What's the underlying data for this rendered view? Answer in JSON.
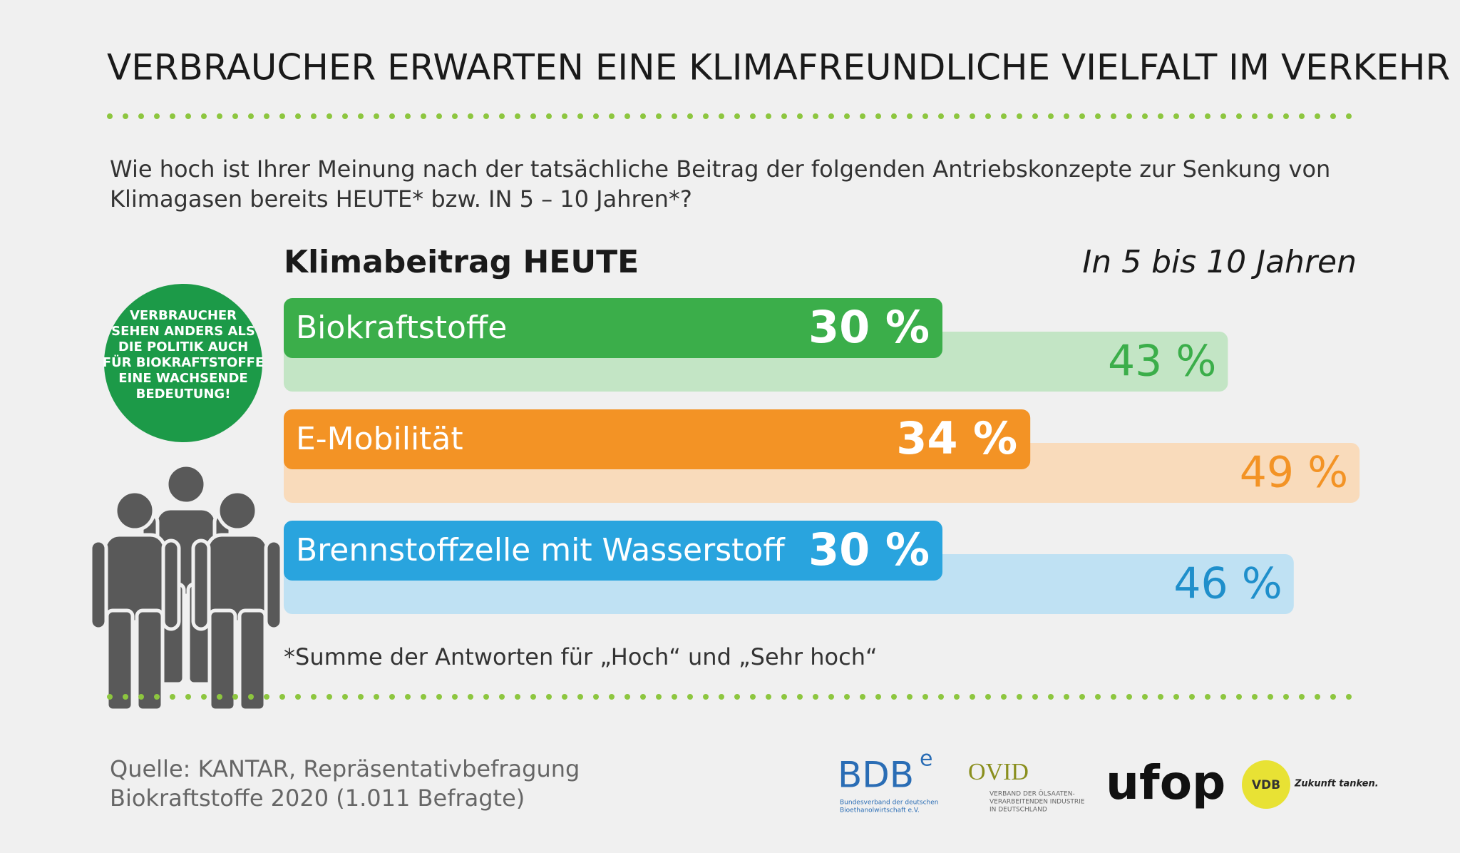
{
  "title": "VERBRAUCHER ERWARTEN EINE KLIMAFREUNDLICHE VIELFALT IM VERKEHR",
  "question": [
    "Wie hoch ist Ihrer Meinung nach der tatsächliche Beitrag der folgenden Antriebskonzepte zur Senkung von",
    "Klimagasen bereits HEUTE* bzw. IN 5 – 10 Jahren*?"
  ],
  "callout": [
    "VERBRAUCHER",
    "SEHEN ANDERS ALS",
    "DIE POLITIK AUCH",
    "FÜR BIOKRAFTSTOFFE",
    "EINE WACHSENDE",
    "BEDEUTUNG!"
  ],
  "chart_data": {
    "type": "bar",
    "orientation": "horizontal",
    "categories": [
      "Biokraftstoffe",
      "E-Mobilität",
      "Brennstoffzelle mit Wasserstoff"
    ],
    "series": [
      {
        "name": "Klimabeitrag HEUTE",
        "colors": [
          "#3bae4a",
          "#f39325",
          "#29a4de"
        ],
        "label_color": "#ffffff",
        "values": [
          30,
          34,
          30
        ],
        "value_labels": [
          "30 %",
          "34 %",
          "30 %"
        ]
      },
      {
        "name": "In 5 bis 10 Jahren",
        "colors": [
          "#c3e5c5",
          "#f9dbbb",
          "#bfe1f3"
        ],
        "label_colors": [
          "#3bae4a",
          "#f39325",
          "#1f8fcb"
        ],
        "values": [
          43,
          49,
          46
        ],
        "value_labels": [
          "43 %",
          "49 %",
          "46 %"
        ]
      }
    ]
  },
  "footnote": "*Summe der Antworten für „Hoch“ und „Sehr hoch“",
  "source": [
    "Quelle: KANTAR, Repräsentativbefragung",
    "Biokraftstoffe 2020 (1.011 Befragte)"
  ],
  "logos": {
    "bdbe": {
      "name": "BDB",
      "sup": "e",
      "sub": [
        "Bundesverband der deutschen",
        "Bioethanolwirtschaft e.V."
      ]
    },
    "ovid": {
      "name": "OVID",
      "sub": [
        "VERBAND DER ÖLSAATEN-",
        "VERARBEITENDEN INDUSTRIE",
        "IN DEUTSCHLAND"
      ]
    },
    "ufop": {
      "name": "ufop"
    },
    "vdb": {
      "name": "VDB",
      "slogan": "Zukunft tanken."
    }
  }
}
